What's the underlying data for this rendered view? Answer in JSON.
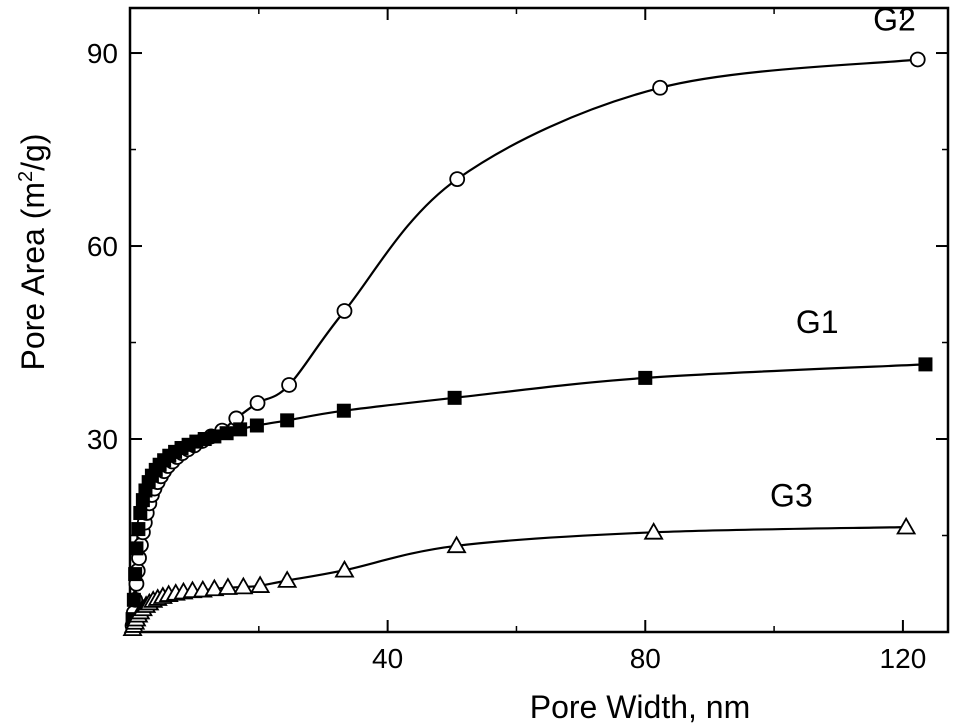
{
  "chart_data": {
    "type": "scatter",
    "title": "",
    "xlabel": "Pore Width, nm",
    "ylabel_main": "Pore Area (m",
    "ylabel_sup": "2",
    "ylabel_tail": "/g)",
    "xlim": [
      0,
      127
    ],
    "ylim": [
      0,
      97
    ],
    "xticks": [
      40,
      80,
      120
    ],
    "yticks": [
      30,
      60,
      90
    ],
    "grid": false,
    "series": [
      {
        "name": "G2",
        "marker": "circle-open",
        "x": [
          0.4,
          0.6,
          0.8,
          1.0,
          1.2,
          1.4,
          1.7,
          2.0,
          2.3,
          2.6,
          3.0,
          3.4,
          3.8,
          4.3,
          4.8,
          5.3,
          5.9,
          6.6,
          7.3,
          8.1,
          9.0,
          10.0,
          11.2,
          12.6,
          14.3,
          16.5,
          19.8,
          24.7,
          33.3,
          50.8,
          82.3,
          122.3
        ],
        "y": [
          1.0,
          3.0,
          5.0,
          7.5,
          9.5,
          11.5,
          13.5,
          15.5,
          17.0,
          18.5,
          20.0,
          21.3,
          22.3,
          23.3,
          24.2,
          25.0,
          25.8,
          26.5,
          27.2,
          27.8,
          28.4,
          29.0,
          29.7,
          30.4,
          31.3,
          33.2,
          35.6,
          38.4,
          49.9,
          70.4,
          84.6,
          89.0
        ]
      },
      {
        "name": "G1",
        "marker": "square-filled",
        "x": [
          0.4,
          0.6,
          0.8,
          1.0,
          1.3,
          1.6,
          2.0,
          2.4,
          2.9,
          3.4,
          4.0,
          4.6,
          5.3,
          6.1,
          7.0,
          8.0,
          9.1,
          10.3,
          11.6,
          13.1,
          15.0,
          17.1,
          19.7,
          24.4,
          33.2,
          50.4,
          80.0,
          123.5
        ],
        "y": [
          2.0,
          5.0,
          9.0,
          13.0,
          16.0,
          18.5,
          20.5,
          22.0,
          23.3,
          24.3,
          25.2,
          26.0,
          26.7,
          27.4,
          28.0,
          28.6,
          29.1,
          29.6,
          30.0,
          30.4,
          30.9,
          31.5,
          32.1,
          32.9,
          34.4,
          36.4,
          39.5,
          41.6
        ]
      },
      {
        "name": "G3",
        "marker": "triangle-open",
        "x": [
          0.4,
          0.6,
          0.8,
          1.0,
          1.3,
          1.6,
          2.0,
          2.5,
          3.0,
          3.6,
          4.3,
          5.1,
          6.0,
          7.1,
          8.3,
          9.7,
          11.3,
          13.1,
          15.2,
          17.6,
          20.2,
          24.4,
          33.3,
          50.7,
          81.3,
          120.5
        ],
        "y": [
          0.5,
          1.0,
          1.5,
          2.0,
          2.6,
          3.1,
          3.6,
          4.1,
          4.5,
          4.9,
          5.2,
          5.5,
          5.8,
          6.0,
          6.2,
          6.4,
          6.5,
          6.7,
          6.9,
          7.0,
          7.2,
          8.0,
          9.6,
          13.4,
          15.5,
          16.3
        ]
      }
    ]
  }
}
